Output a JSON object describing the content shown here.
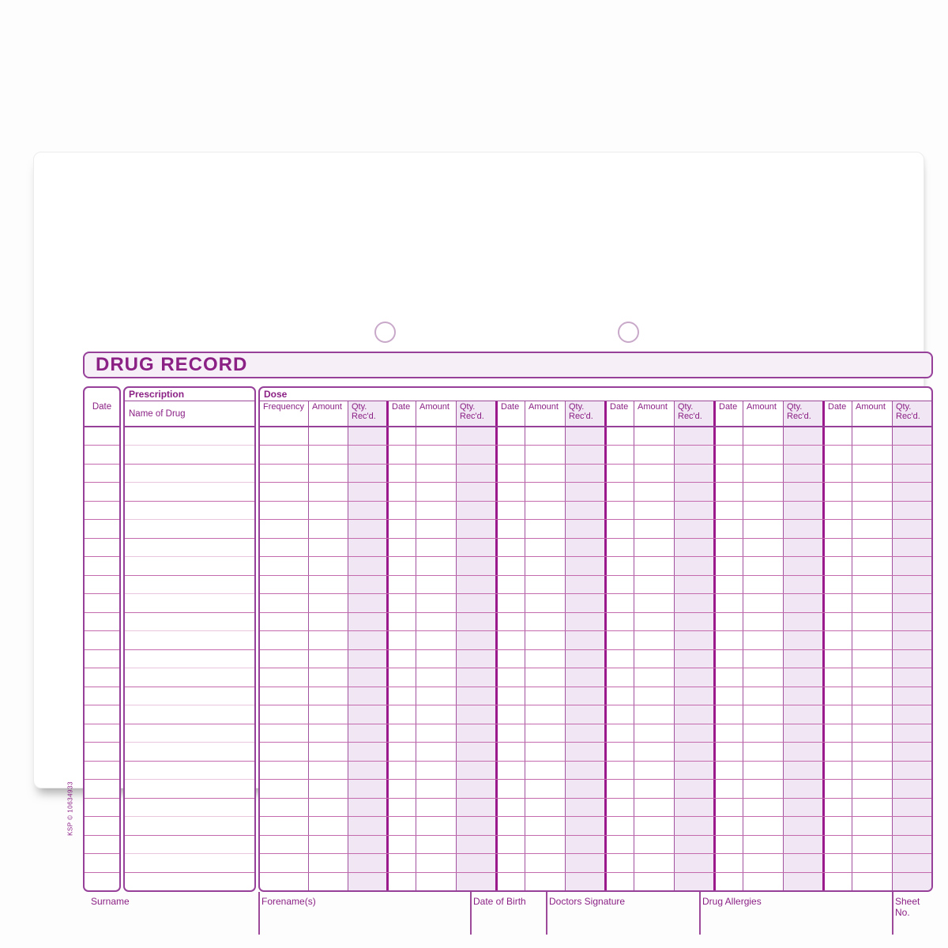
{
  "title": "DRUG RECORD",
  "side_code": "KSP © 10634933",
  "table": {
    "date_col_header": "Date",
    "prescription_group_header": "Prescription",
    "prescription_col_header": "Name of Drug",
    "dose_group_header": "Dose",
    "dose_cols": [
      "Frequency",
      "Amount",
      "Qty. Rec'd."
    ],
    "repeat_group_cols": [
      "Date",
      "Amount",
      "Qty. Rec'd."
    ],
    "repeat_group_count": 5,
    "body_row_count": 25
  },
  "footer": {
    "fields": [
      "Surname",
      "Forename(s)",
      "Date of Birth",
      "Doctors Signature",
      "Drug Allergies",
      "Sheet No."
    ]
  },
  "colors": {
    "accent_dark": "#8b2185",
    "border_purple": "#96409a",
    "row_line": "#c46bad",
    "row_line_faint": "#e9c6de",
    "shaded_column": "#f1e6f3",
    "thick_divider": "#9a1a8c",
    "title_bar_bg": "#f7eff8",
    "hole_ring": "#c9a9c9"
  }
}
